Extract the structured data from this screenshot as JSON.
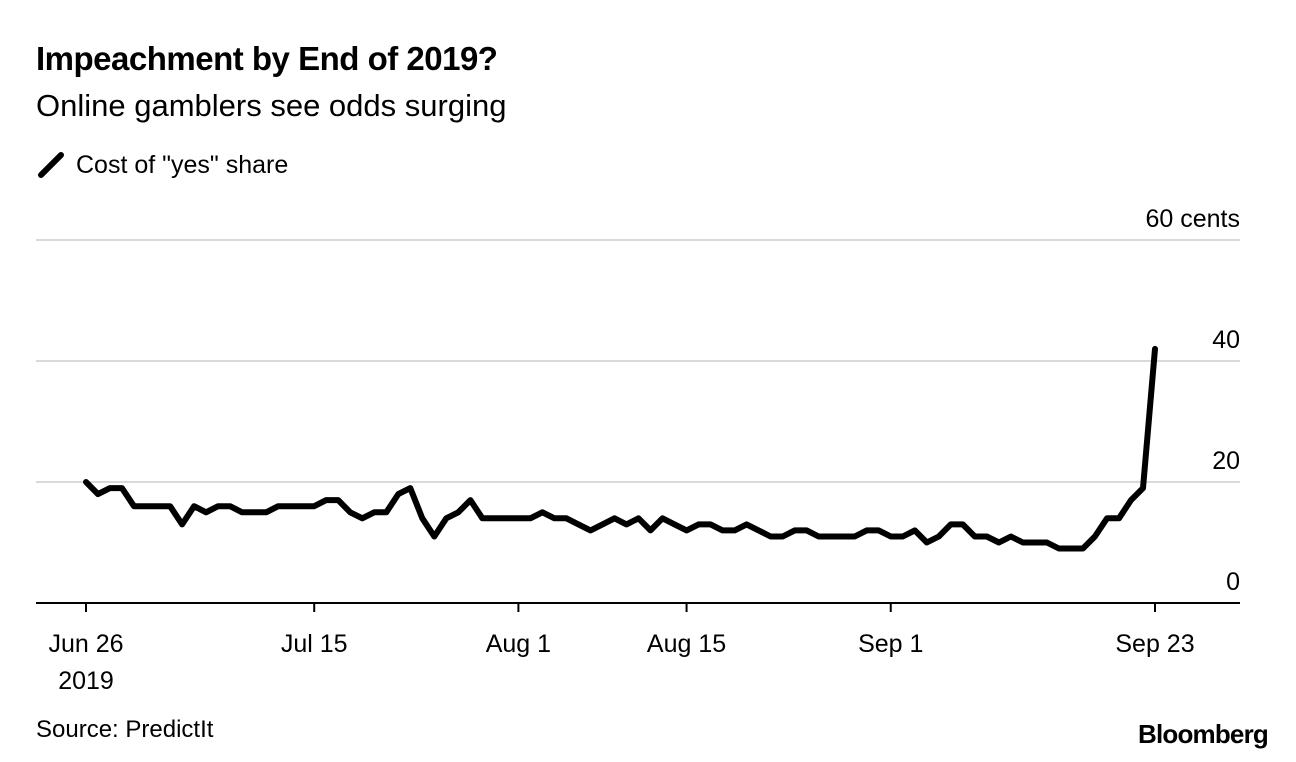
{
  "chart_data": {
    "type": "line",
    "title": "Impeachment by End of 2019?",
    "subtitle": "Online gamblers see odds surging",
    "legend": [
      "Cost of \"yes\" share"
    ],
    "ylabel": "",
    "y_unit_label": "60 cents",
    "yticks": [
      0,
      20,
      40,
      60
    ],
    "ytick_labels": [
      "0",
      "20",
      "40",
      "60 cents"
    ],
    "ylim": [
      0,
      60
    ],
    "xlim": [
      "2019-06-22",
      "2019-10-02"
    ],
    "xticks": [
      {
        "date": "2019-06-26",
        "label": "Jun 26",
        "sublabel": "2019"
      },
      {
        "date": "2019-07-15",
        "label": "Jul 15",
        "sublabel": ""
      },
      {
        "date": "2019-08-01",
        "label": "Aug 1",
        "sublabel": ""
      },
      {
        "date": "2019-08-15",
        "label": "Aug 15",
        "sublabel": ""
      },
      {
        "date": "2019-09-01",
        "label": "Sep 1",
        "sublabel": ""
      },
      {
        "date": "2019-09-23",
        "label": "Sep 23",
        "sublabel": ""
      }
    ],
    "series": [
      {
        "name": "Cost of \"yes\" share",
        "color": "#000000",
        "points": [
          [
            "2019-06-26",
            20
          ],
          [
            "2019-06-27",
            18
          ],
          [
            "2019-06-28",
            19
          ],
          [
            "2019-06-29",
            19
          ],
          [
            "2019-06-30",
            16
          ],
          [
            "2019-07-01",
            16
          ],
          [
            "2019-07-02",
            16
          ],
          [
            "2019-07-03",
            16
          ],
          [
            "2019-07-04",
            13
          ],
          [
            "2019-07-05",
            16
          ],
          [
            "2019-07-06",
            15
          ],
          [
            "2019-07-07",
            16
          ],
          [
            "2019-07-08",
            16
          ],
          [
            "2019-07-09",
            15
          ],
          [
            "2019-07-10",
            15
          ],
          [
            "2019-07-11",
            15
          ],
          [
            "2019-07-12",
            16
          ],
          [
            "2019-07-13",
            16
          ],
          [
            "2019-07-14",
            16
          ],
          [
            "2019-07-15",
            16
          ],
          [
            "2019-07-16",
            17
          ],
          [
            "2019-07-17",
            17
          ],
          [
            "2019-07-18",
            15
          ],
          [
            "2019-07-19",
            14
          ],
          [
            "2019-07-20",
            15
          ],
          [
            "2019-07-21",
            15
          ],
          [
            "2019-07-22",
            18
          ],
          [
            "2019-07-23",
            19
          ],
          [
            "2019-07-24",
            14
          ],
          [
            "2019-07-25",
            11
          ],
          [
            "2019-07-26",
            14
          ],
          [
            "2019-07-27",
            15
          ],
          [
            "2019-07-28",
            17
          ],
          [
            "2019-07-29",
            14
          ],
          [
            "2019-07-30",
            14
          ],
          [
            "2019-07-31",
            14
          ],
          [
            "2019-08-01",
            14
          ],
          [
            "2019-08-02",
            14
          ],
          [
            "2019-08-03",
            15
          ],
          [
            "2019-08-04",
            14
          ],
          [
            "2019-08-05",
            14
          ],
          [
            "2019-08-06",
            13
          ],
          [
            "2019-08-07",
            12
          ],
          [
            "2019-08-08",
            13
          ],
          [
            "2019-08-09",
            14
          ],
          [
            "2019-08-10",
            13
          ],
          [
            "2019-08-11",
            14
          ],
          [
            "2019-08-12",
            12
          ],
          [
            "2019-08-13",
            14
          ],
          [
            "2019-08-14",
            13
          ],
          [
            "2019-08-15",
            12
          ],
          [
            "2019-08-16",
            13
          ],
          [
            "2019-08-17",
            13
          ],
          [
            "2019-08-18",
            12
          ],
          [
            "2019-08-19",
            12
          ],
          [
            "2019-08-20",
            13
          ],
          [
            "2019-08-21",
            12
          ],
          [
            "2019-08-22",
            11
          ],
          [
            "2019-08-23",
            11
          ],
          [
            "2019-08-24",
            12
          ],
          [
            "2019-08-25",
            12
          ],
          [
            "2019-08-26",
            11
          ],
          [
            "2019-08-27",
            11
          ],
          [
            "2019-08-28",
            11
          ],
          [
            "2019-08-29",
            11
          ],
          [
            "2019-08-30",
            12
          ],
          [
            "2019-08-31",
            12
          ],
          [
            "2019-09-01",
            11
          ],
          [
            "2019-09-02",
            11
          ],
          [
            "2019-09-03",
            12
          ],
          [
            "2019-09-04",
            10
          ],
          [
            "2019-09-05",
            11
          ],
          [
            "2019-09-06",
            13
          ],
          [
            "2019-09-07",
            13
          ],
          [
            "2019-09-08",
            11
          ],
          [
            "2019-09-09",
            11
          ],
          [
            "2019-09-10",
            10
          ],
          [
            "2019-09-11",
            11
          ],
          [
            "2019-09-12",
            10
          ],
          [
            "2019-09-13",
            10
          ],
          [
            "2019-09-14",
            10
          ],
          [
            "2019-09-15",
            9
          ],
          [
            "2019-09-16",
            9
          ],
          [
            "2019-09-17",
            9
          ],
          [
            "2019-09-18",
            11
          ],
          [
            "2019-09-19",
            14
          ],
          [
            "2019-09-20",
            14
          ],
          [
            "2019-09-21",
            17
          ],
          [
            "2019-09-22",
            19
          ],
          [
            "2019-09-23",
            42
          ]
        ]
      }
    ],
    "grid": true,
    "legend_position": "top-left"
  },
  "source": "Source: PredictIt",
  "brand": "Bloomberg",
  "colors": {
    "line": "#000000",
    "grid": "#d9d9d9",
    "axis": "#000000"
  }
}
